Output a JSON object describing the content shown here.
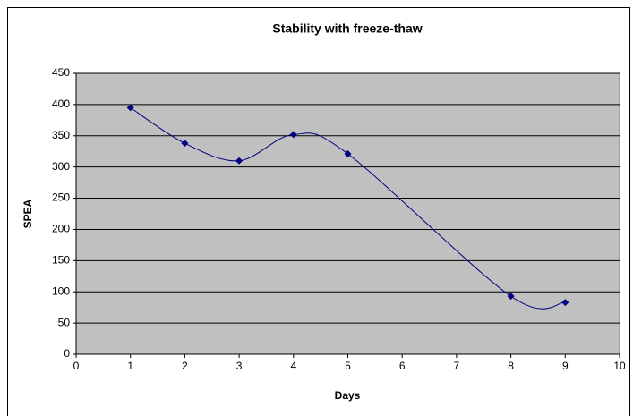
{
  "chart_data": {
    "type": "scatter",
    "smooth": true,
    "title": "Stability with freeze-thaw",
    "x_label": "Days",
    "y_label": "SPEA",
    "x": [
      1,
      2,
      3,
      4,
      5,
      8,
      9
    ],
    "values": [
      395,
      338,
      310,
      352,
      321,
      93,
      83
    ],
    "color": "#000080",
    "xlim": [
      0,
      10
    ],
    "xticks": [
      0,
      1,
      2,
      3,
      4,
      5,
      6,
      7,
      8,
      9,
      10
    ],
    "ylim": [
      0,
      450
    ],
    "yticks": [
      0,
      50,
      100,
      150,
      200,
      250,
      300,
      350,
      400,
      450
    ],
    "grid": true
  }
}
